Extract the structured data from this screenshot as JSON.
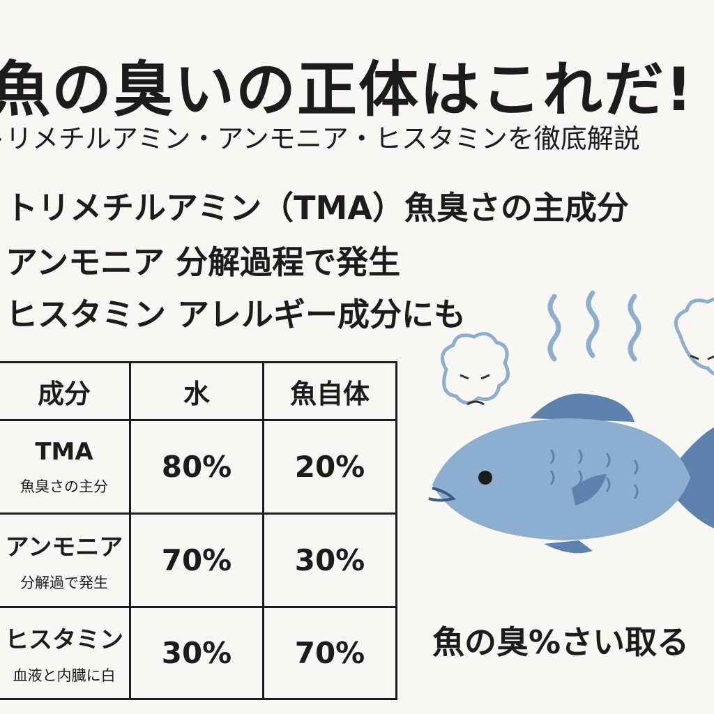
{
  "title": "魚の臭いの正体はこれだ!",
  "subtitle": "トリメチルアミン・アンモニア・ヒスタミンを徹底解説",
  "bullets": [
    "トリメチルアミン（TMA）魚臭さの主成分",
    "アンモニア 分解過程で発生",
    "ヒスタミン アレルギー成分にも"
  ],
  "table": {
    "headers": [
      "成分",
      "水",
      "魚自体"
    ],
    "rows": [
      {
        "name": "TMA",
        "note": "魚臭さの主分",
        "water": "80%",
        "fish": "20%"
      },
      {
        "name": "アンモニア",
        "note": "分解過で発生",
        "water": "70%",
        "fish": "30%"
      },
      {
        "name": "ヒスタミン",
        "note": "血液と内臓に白",
        "water": "30%",
        "fish": "70%"
      }
    ]
  },
  "caption": "魚の臭%さい取る",
  "colors": {
    "fish": "#8eaed0",
    "fish_dark": "#5d82ad",
    "background": "#f8f7f3"
  }
}
